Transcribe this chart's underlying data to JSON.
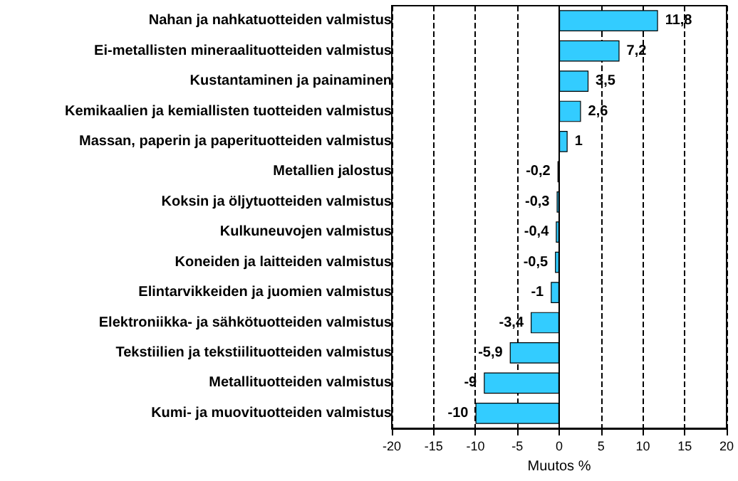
{
  "chart_data": {
    "type": "bar",
    "orientation": "horizontal",
    "xlabel": "Muutos %",
    "categories": [
      "Nahan ja nahkatuotteiden valmistus",
      "Ei-metallisten mineraalituotteiden valmistus",
      "Kustantaminen ja painaminen",
      "Kemikaalien ja kemiallisten tuotteiden valmistus",
      "Massan, paperin ja paperituotteiden valmistus",
      "Metallien jalostus",
      "Koksin ja öljytuotteiden valmistus",
      "Kulkuneuvojen valmistus",
      "Koneiden ja laitteiden valmistus",
      "Elintarvikkeiden ja juomien valmistus",
      "Elektroniikka- ja sähkötuotteiden valmistus",
      "Tekstiilien ja tekstiilituotteiden valmistus",
      "Metallituotteiden valmistus",
      "Kumi- ja muovituotteiden valmistus"
    ],
    "values": [
      11.8,
      7.2,
      3.5,
      2.6,
      1,
      -0.2,
      -0.3,
      -0.4,
      -0.5,
      -1,
      -3.4,
      -5.9,
      -9,
      -10
    ],
    "value_labels": [
      "11,8",
      "7,2",
      "3,5",
      "2,6",
      "1",
      "-0,2",
      "-0,3",
      "-0,4",
      "-0,5",
      "-1",
      "-3,4",
      "-5,9",
      "-9",
      "-10"
    ],
    "color": "#33ccff",
    "xlim": [
      -20,
      20
    ],
    "xticks": [
      -20,
      -15,
      -10,
      -5,
      0,
      5,
      10,
      15,
      20
    ],
    "grid": "x"
  }
}
